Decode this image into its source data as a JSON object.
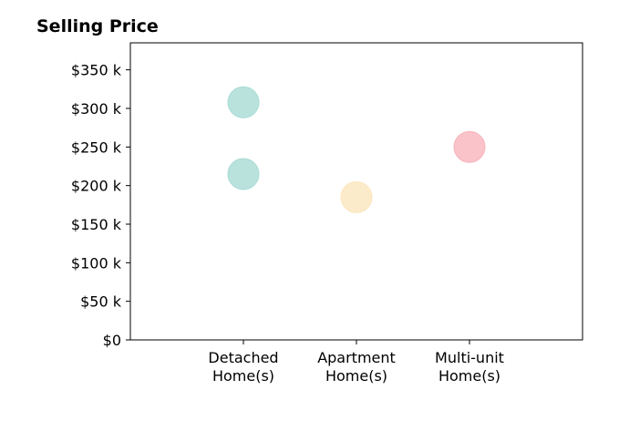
{
  "chart_data": {
    "type": "scatter",
    "title": "Selling Price",
    "xlabel": "",
    "ylabel": "",
    "categories": [
      [
        "Detached",
        "Home(s)"
      ],
      [
        "Apartment",
        "Home(s)"
      ],
      [
        "Multi-unit",
        "Home(s)"
      ]
    ],
    "x_range": [
      -1,
      3
    ],
    "ylim": [
      0,
      385000
    ],
    "y_ticks": [
      0,
      50000,
      100000,
      150000,
      200000,
      250000,
      300000,
      350000
    ],
    "y_tick_labels": [
      "$0",
      "$50 k",
      "$100 k",
      "$150 k",
      "$200 k",
      "$250 k",
      "$300 k",
      "$350 k"
    ],
    "grid": false,
    "series": [
      {
        "category": 0,
        "points": [
          308000,
          215000
        ],
        "color": "#a8dbd5"
      },
      {
        "category": 1,
        "points": [
          185000
        ],
        "color": "#fbe6bd"
      },
      {
        "category": 2,
        "points": [
          250000
        ],
        "color": "#f8b4bc"
      }
    ]
  }
}
